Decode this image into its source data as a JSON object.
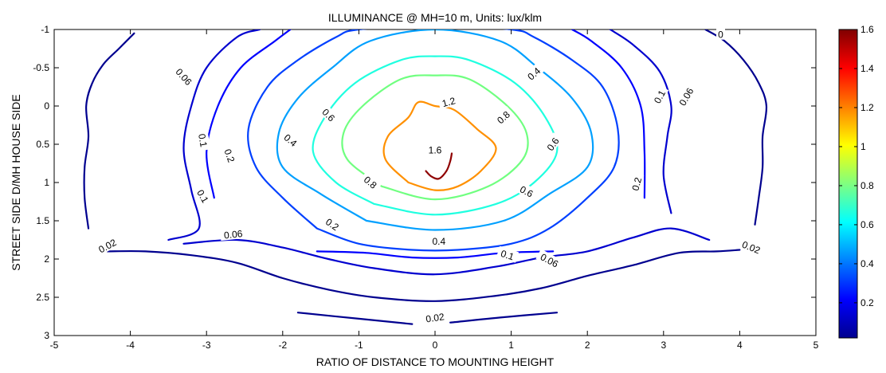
{
  "chart_data": {
    "type": "contour",
    "title": "ILLUMINANCE @ MH=10 m, Units: lux/klm",
    "xlabel": "RATIO OF DISTANCE TO MOUNTING HEIGHT",
    "ylabel": "STREET SIDE  D/MH  HOUSE SIDE",
    "xlim": [
      -5,
      5
    ],
    "ylim": [
      -1,
      3
    ],
    "y_reversed": true,
    "x_ticks": [
      "-5",
      "-4",
      "-3",
      "-2",
      "-1",
      "0",
      "1",
      "2",
      "3",
      "4",
      "5"
    ],
    "y_ticks": [
      "-1",
      "-0.5",
      "0",
      "0.5",
      "1",
      "1.5",
      "2",
      "2.5",
      "3"
    ],
    "colorbar": {
      "range": [
        0.02,
        1.6
      ],
      "ticks": [
        "0.2",
        "0.4",
        "0.6",
        "0.8",
        "1",
        "1.2",
        "1.4",
        "1.6"
      ],
      "colormap": "jet"
    },
    "levels": [
      {
        "value": 0.02,
        "label": "0.02",
        "color": "#00008f",
        "points": [
          [
            -4.3,
            1.9
          ],
          [
            -3.8,
            1.9
          ],
          [
            -3.2,
            1.95
          ],
          [
            -2.6,
            2.05
          ],
          [
            -2,
            2.25
          ],
          [
            -1.4,
            2.4
          ],
          [
            -0.8,
            2.5
          ],
          [
            0,
            2.55
          ],
          [
            0.8,
            2.48
          ],
          [
            1.4,
            2.38
          ],
          [
            2,
            2.22
          ],
          [
            2.6,
            2.08
          ],
          [
            3.2,
            1.92
          ],
          [
            3.7,
            1.9
          ],
          [
            4,
            1.88
          ]
        ]
      },
      {
        "value": 0.02,
        "label": "0.02",
        "color": "#00008f",
        "points": [
          [
            -4.55,
            1.6
          ],
          [
            -4.6,
            1.2
          ],
          [
            -4.6,
            0.8
          ],
          [
            -4.55,
            0.4
          ],
          [
            -4.58,
            0
          ],
          [
            -4.5,
            -0.3
          ],
          [
            -4.35,
            -0.55
          ],
          [
            -4.15,
            -0.75
          ],
          [
            -3.95,
            -0.95
          ]
        ]
      },
      {
        "value": 0.02,
        "label": "0.02",
        "color": "#00008f",
        "points": [
          [
            4.2,
            1.55
          ],
          [
            4.25,
            1.2
          ],
          [
            4.3,
            0.8
          ],
          [
            4.3,
            0.4
          ],
          [
            4.35,
            0
          ],
          [
            4.25,
            -0.3
          ],
          [
            4.05,
            -0.6
          ],
          [
            3.8,
            -0.85
          ],
          [
            3.55,
            -1
          ]
        ]
      },
      {
        "value": 0.02,
        "label": "0.02",
        "color": "#00008f",
        "points": [
          [
            -1.8,
            2.7
          ],
          [
            -1,
            2.78
          ],
          [
            -0.3,
            2.85
          ]
        ]
      },
      {
        "value": 0.02,
        "label": "0.02",
        "color": "#00008f",
        "points": [
          [
            0.2,
            2.83
          ],
          [
            0.9,
            2.76
          ],
          [
            1.6,
            2.7
          ]
        ]
      },
      {
        "value": 0.06,
        "label": "0.06",
        "color": "#0000cf",
        "points": [
          [
            -3.5,
            1.75
          ],
          [
            -3.1,
            1.6
          ],
          [
            -3.2,
            1.1
          ],
          [
            -3.3,
            0.55
          ],
          [
            -3.2,
            0
          ],
          [
            -3,
            -0.5
          ],
          [
            -2.6,
            -0.9
          ],
          [
            -2.3,
            -1
          ]
        ]
      },
      {
        "value": 0.06,
        "label": "0.06",
        "color": "#0000cf",
        "points": [
          [
            -3.3,
            1.8
          ],
          [
            -2.6,
            1.75
          ],
          [
            -2,
            1.85
          ],
          [
            -1.4,
            2
          ],
          [
            -0.8,
            2.12
          ],
          [
            0,
            2.2
          ],
          [
            0.8,
            2.1
          ],
          [
            1.4,
            1.98
          ],
          [
            2,
            1.9
          ],
          [
            2.6,
            1.72
          ],
          [
            3.1,
            1.6
          ],
          [
            3.6,
            1.75
          ]
        ]
      },
      {
        "value": 0.06,
        "label": "0.06",
        "color": "#0000cf",
        "points": [
          [
            3.1,
            1.4
          ],
          [
            3,
            0.9
          ],
          [
            3.05,
            0.4
          ],
          [
            3.1,
            0
          ],
          [
            2.95,
            -0.45
          ],
          [
            2.6,
            -0.8
          ],
          [
            2.3,
            -1
          ]
        ]
      },
      {
        "value": 0.1,
        "label": "0.1",
        "color": "#0000ff",
        "points": [
          [
            -1.55,
            1.9
          ],
          [
            -0.9,
            1.92
          ],
          [
            -0.3,
            1.98
          ],
          [
            0.3,
            1.98
          ],
          [
            0.9,
            1.92
          ],
          [
            1.55,
            1.9
          ]
        ]
      },
      {
        "value": 0.1,
        "label": "0.1",
        "color": "#0000ff",
        "points": [
          [
            -2.9,
            1.2
          ],
          [
            -3,
            0.6
          ],
          [
            -2.85,
            0
          ],
          [
            -2.55,
            -0.5
          ],
          [
            -2.1,
            -0.85
          ],
          [
            -1.9,
            -1
          ]
        ]
      },
      {
        "value": 0.1,
        "label": "0.1",
        "color": "#0000ff",
        "points": [
          [
            2.75,
            1.2
          ],
          [
            2.75,
            0.6
          ],
          [
            2.7,
            0
          ],
          [
            2.45,
            -0.5
          ],
          [
            2.05,
            -0.85
          ],
          [
            1.8,
            -1
          ]
        ]
      },
      {
        "value": 0.2,
        "label": "0.2",
        "color": "#0040ff",
        "points": [
          [
            -1.55,
            1.6
          ],
          [
            -2,
            1.2
          ],
          [
            -2.35,
            0.8
          ],
          [
            -2.45,
            0.3
          ],
          [
            -2.2,
            -0.25
          ],
          [
            -1.8,
            -0.6
          ],
          [
            -1.3,
            -0.9
          ],
          [
            -1,
            -1
          ],
          [
            0,
            -1.05
          ],
          [
            1,
            -1
          ],
          [
            1.3,
            -0.9
          ],
          [
            1.8,
            -0.6
          ],
          [
            2.2,
            -0.25
          ],
          [
            2.4,
            0.3
          ],
          [
            2.35,
            0.8
          ],
          [
            2,
            1.2
          ],
          [
            1.5,
            1.6
          ],
          [
            1,
            1.8
          ],
          [
            0.3,
            1.88
          ],
          [
            -0.3,
            1.88
          ],
          [
            -1,
            1.8
          ],
          [
            -1.55,
            1.6
          ]
        ]
      },
      {
        "value": 0.4,
        "label": "0.4",
        "color": "#00a0ff",
        "points": [
          [
            -0.9,
            1.5
          ],
          [
            -1.5,
            1.15
          ],
          [
            -2,
            0.8
          ],
          [
            -2.05,
            0.35
          ],
          [
            -1.8,
            -0.1
          ],
          [
            -1.35,
            -0.5
          ],
          [
            -0.85,
            -0.85
          ],
          [
            0,
            -1
          ],
          [
            0.85,
            -0.85
          ],
          [
            1.35,
            -0.5
          ],
          [
            1.8,
            -0.1
          ],
          [
            2.05,
            0.35
          ],
          [
            2,
            0.8
          ],
          [
            1.5,
            1.15
          ],
          [
            0.9,
            1.5
          ],
          [
            0,
            1.62
          ],
          [
            -0.9,
            1.5
          ]
        ]
      },
      {
        "value": 0.6,
        "label": "0.6",
        "color": "#20ffe0",
        "points": [
          [
            -0.8,
            1.28
          ],
          [
            -1.3,
            1
          ],
          [
            -1.6,
            0.6
          ],
          [
            -1.45,
            0.15
          ],
          [
            -1.05,
            -0.3
          ],
          [
            -0.45,
            -0.6
          ],
          [
            0,
            -0.65
          ],
          [
            0.45,
            -0.6
          ],
          [
            1.05,
            -0.3
          ],
          [
            1.45,
            0.15
          ],
          [
            1.6,
            0.6
          ],
          [
            1.3,
            1
          ],
          [
            0.8,
            1.28
          ],
          [
            0,
            1.42
          ],
          [
            -0.8,
            1.28
          ]
        ]
      },
      {
        "value": 0.8,
        "label": "0.8",
        "color": "#70ff80",
        "points": [
          [
            -0.7,
            1.05
          ],
          [
            -1.15,
            0.7
          ],
          [
            -1.2,
            0.35
          ],
          [
            -0.95,
            0
          ],
          [
            -0.45,
            -0.35
          ],
          [
            0,
            -0.4
          ],
          [
            0.45,
            -0.35
          ],
          [
            0.95,
            0
          ],
          [
            1.2,
            0.35
          ],
          [
            1.15,
            0.7
          ],
          [
            0.7,
            1.05
          ],
          [
            0,
            1.22
          ],
          [
            -0.7,
            1.05
          ]
        ]
      },
      {
        "value": 1.2,
        "label": "1.2",
        "color": "#ff9000",
        "points": [
          [
            -0.35,
            1
          ],
          [
            -0.65,
            0.7
          ],
          [
            -0.62,
            0.4
          ],
          [
            -0.35,
            0.15
          ],
          [
            -0.22,
            -0.05
          ],
          [
            0,
            0
          ],
          [
            0.25,
            0.05
          ],
          [
            0.55,
            0.3
          ],
          [
            0.8,
            0.55
          ],
          [
            0.6,
            0.85
          ],
          [
            0.3,
            1.05
          ],
          [
            0,
            1.1
          ],
          [
            -0.35,
            1
          ]
        ]
      },
      {
        "value": 1.6,
        "label": "1.6",
        "color": "#8f0000",
        "points": [
          [
            -0.12,
            0.85
          ],
          [
            -0.05,
            0.92
          ],
          [
            0.05,
            0.95
          ],
          [
            0.15,
            0.85
          ],
          [
            0.2,
            0.72
          ],
          [
            0.22,
            0.62
          ]
        ]
      }
    ],
    "inline_labels": [
      {
        "text": "0.02",
        "x": -4.3,
        "y": 1.83,
        "rotate": -28
      },
      {
        "text": "0.02",
        "x": 4.15,
        "y": 1.85,
        "rotate": 22
      },
      {
        "text": "0.02",
        "x": 0,
        "y": 2.77,
        "rotate": -8
      },
      {
        "text": "0.06",
        "x": -3.3,
        "y": -0.38,
        "rotate": 48
      },
      {
        "text": "0.06",
        "x": -2.65,
        "y": 1.68,
        "rotate": -6
      },
      {
        "text": "0.06",
        "x": 3.3,
        "y": -0.12,
        "rotate": -60
      },
      {
        "text": "0.06",
        "x": 1.5,
        "y": 2.02,
        "rotate": 28
      },
      {
        "text": "0.1",
        "x": -3.05,
        "y": 0.45,
        "rotate": 80
      },
      {
        "text": "0.1",
        "x": -3.05,
        "y": 1.18,
        "rotate": 60
      },
      {
        "text": "0.1",
        "x": 2.95,
        "y": -0.12,
        "rotate": -62
      },
      {
        "text": "0.1",
        "x": 0.95,
        "y": 1.95,
        "rotate": 18
      },
      {
        "text": "0.2",
        "x": -2.7,
        "y": 0.65,
        "rotate": 70
      },
      {
        "text": "0.2",
        "x": -1.35,
        "y": 1.55,
        "rotate": 35
      },
      {
        "text": "0.2",
        "x": 2.65,
        "y": 1.02,
        "rotate": -75
      },
      {
        "text": "0.4",
        "x": -1.9,
        "y": 0.45,
        "rotate": 40
      },
      {
        "text": "0.4",
        "x": 1.3,
        "y": -0.42,
        "rotate": -42
      },
      {
        "text": "0.4",
        "x": 0.05,
        "y": 1.77,
        "rotate": 0
      },
      {
        "text": "0.6",
        "x": -1.4,
        "y": 0.12,
        "rotate": 45
      },
      {
        "text": "0.6",
        "x": 1.55,
        "y": 0.5,
        "rotate": -55
      },
      {
        "text": "0.6",
        "x": 1.2,
        "y": 1.12,
        "rotate": 28
      },
      {
        "text": "0.8",
        "x": -0.85,
        "y": 1,
        "rotate": 40
      },
      {
        "text": "0.8",
        "x": 0.9,
        "y": 0.15,
        "rotate": -42
      },
      {
        "text": "1.2",
        "x": 0.18,
        "y": -0.05,
        "rotate": -15
      },
      {
        "text": "1.6",
        "x": 0,
        "y": 0.58,
        "rotate": 0
      },
      {
        "text": "0",
        "x": 3.75,
        "y": -0.93,
        "rotate": 0
      }
    ]
  }
}
